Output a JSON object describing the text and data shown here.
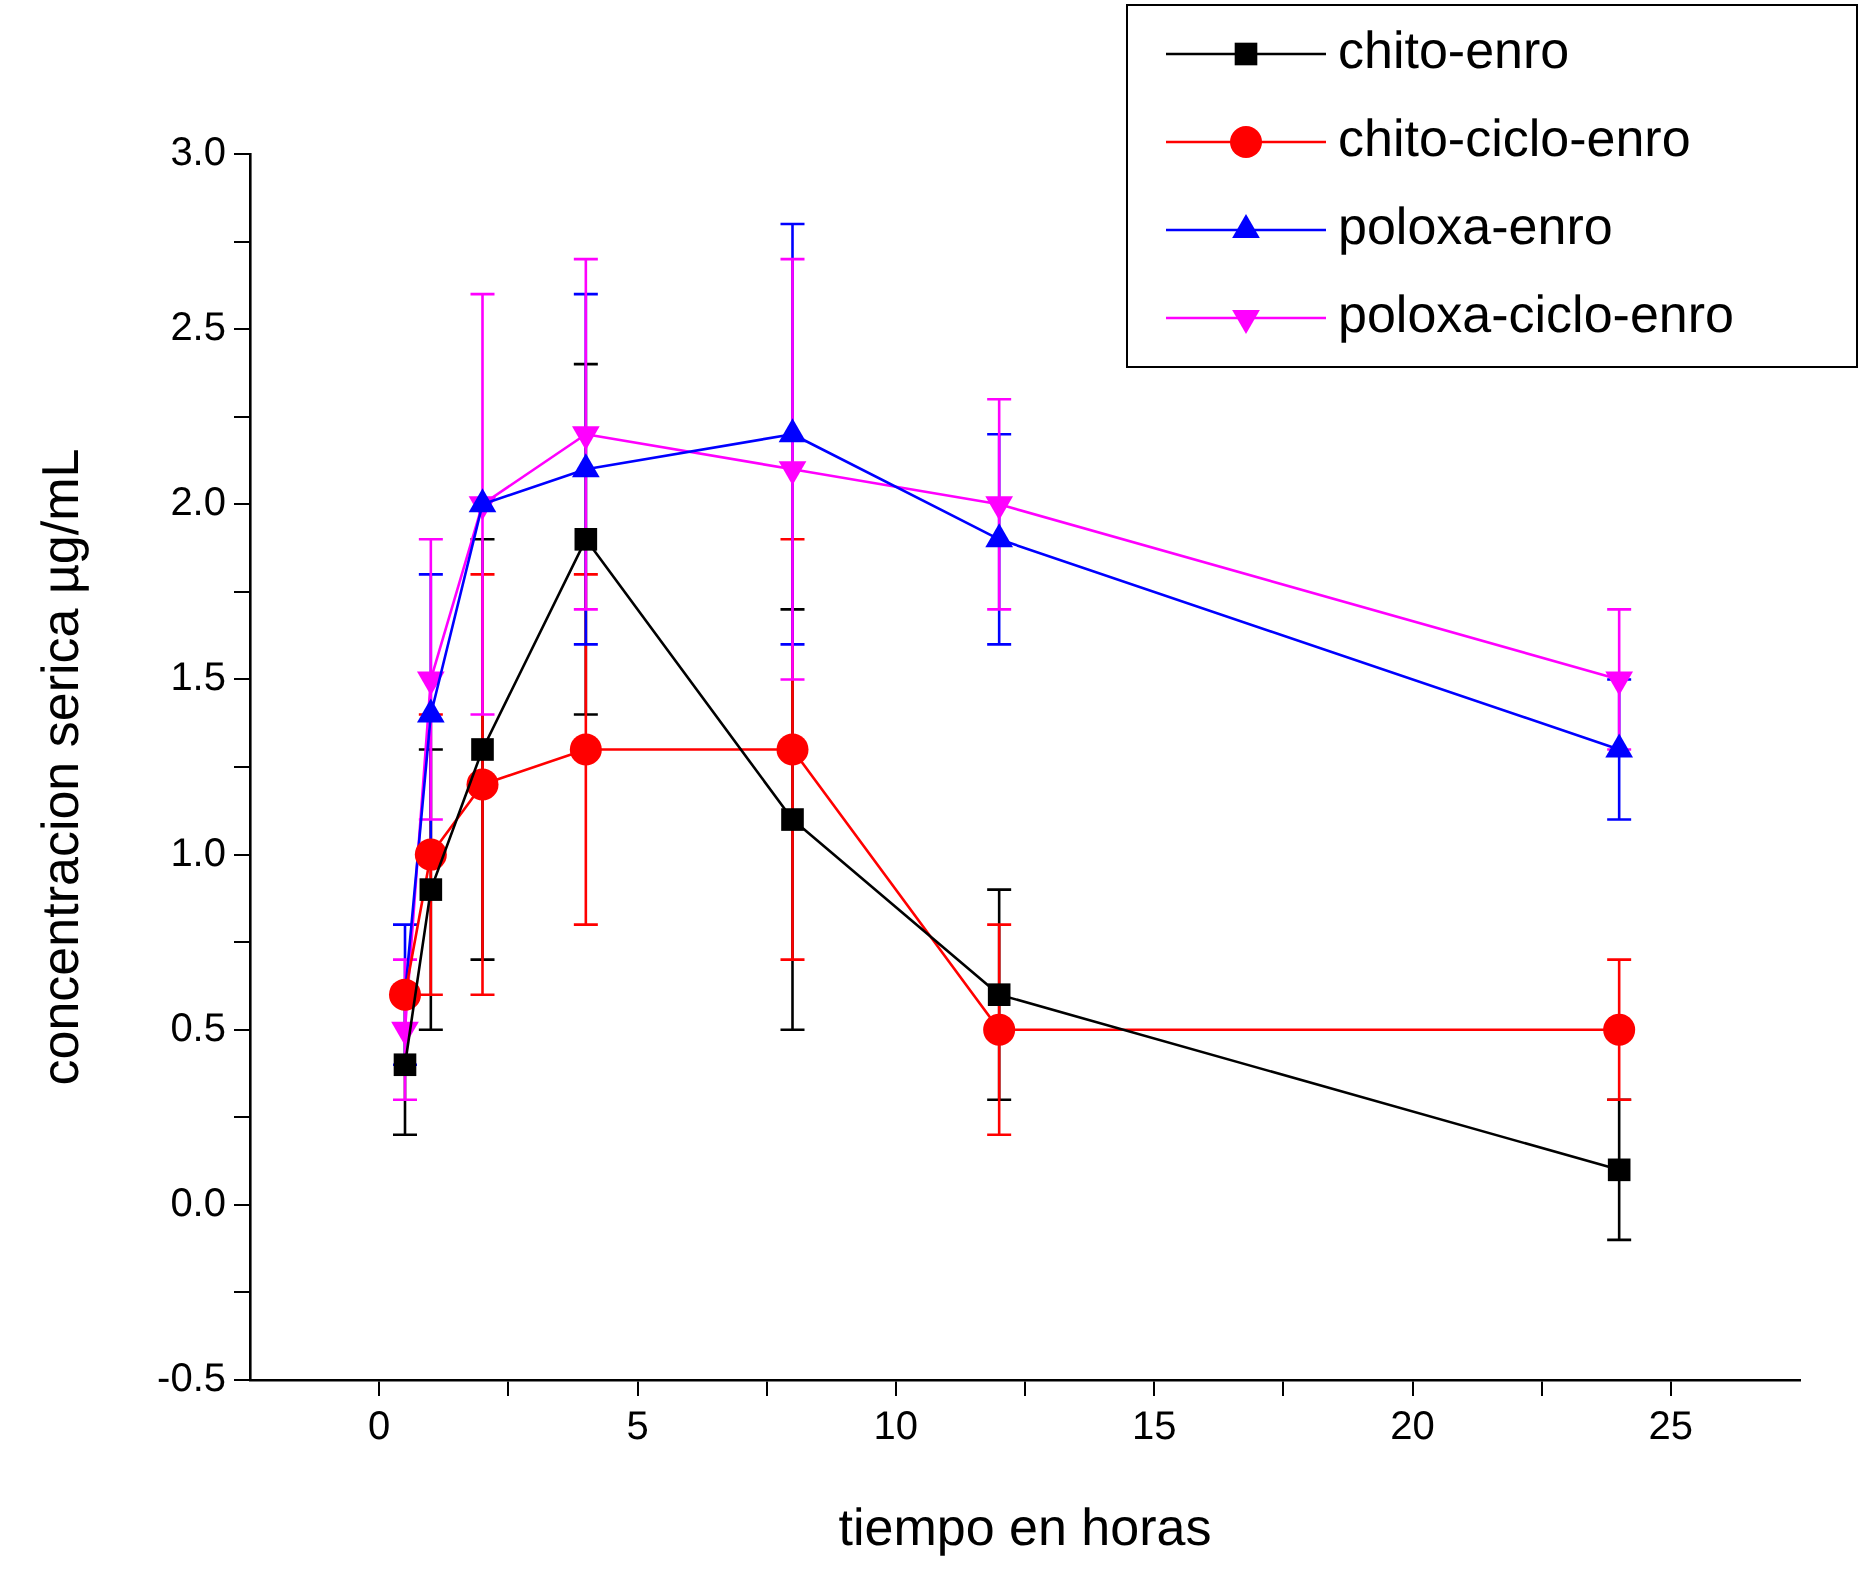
{
  "chart_data": {
    "type": "line",
    "xlabel": "tiempo en horas",
    "ylabel": "concentracion serica µg/mL",
    "x": [
      0.5,
      1,
      2,
      4,
      8,
      12,
      24
    ],
    "series": [
      {
        "name": "chito-enro",
        "color": "#000000",
        "marker": "square",
        "values": [
          0.4,
          0.9,
          1.3,
          1.9,
          1.1,
          0.6,
          0.1
        ],
        "errors": [
          0.2,
          0.4,
          0.6,
          0.5,
          0.6,
          0.3,
          0.2
        ]
      },
      {
        "name": "chito-ciclo-enro",
        "color": "#ff0000",
        "marker": "circle",
        "values": [
          0.6,
          1.0,
          1.2,
          1.3,
          1.3,
          0.5,
          0.5
        ],
        "errors": [
          null,
          0.4,
          0.6,
          0.5,
          0.6,
          0.3,
          0.2
        ]
      },
      {
        "name": "poloxa-enro",
        "color": "#0000ff",
        "marker": "triangle",
        "values": [
          0.6,
          1.4,
          2.0,
          2.1,
          2.2,
          1.9,
          1.3
        ],
        "errors": [
          0.2,
          0.4,
          null,
          0.5,
          0.6,
          0.3,
          0.2
        ]
      },
      {
        "name": "poloxa-ciclo-enro",
        "color": "#ff00ff",
        "marker": "triangle-down",
        "values": [
          0.5,
          1.5,
          2.0,
          2.2,
          2.1,
          2.0,
          1.5
        ],
        "errors": [
          0.2,
          0.4,
          0.6,
          0.5,
          0.6,
          0.3,
          0.2
        ]
      }
    ],
    "xlim": [
      -2.5,
      27.5
    ],
    "xticks": [
      0,
      {
        "value": 2.5,
        "label": null
      },
      5,
      {
        "value": 7.5,
        "label": null
      },
      10,
      {
        "value": 12.5,
        "label": null
      },
      15,
      {
        "value": 17.5,
        "label": null
      },
      20,
      {
        "value": 22.5,
        "label": null
      },
      25
    ],
    "ylim": [
      -0.5,
      3.0
    ],
    "yticks": [
      -0.5,
      {
        "value": -0.25,
        "label": null
      },
      {
        "value": 0,
        "label": "0.0"
      },
      {
        "value": 0.25,
        "label": null
      },
      0.5,
      {
        "value": 0.75,
        "label": null
      },
      {
        "value": 1,
        "label": "1.0"
      },
      {
        "value": 1.25,
        "label": null
      },
      1.5,
      {
        "value": 1.75,
        "label": null
      },
      {
        "value": 2,
        "label": "2.0"
      },
      {
        "value": 2.25,
        "label": null
      },
      2.5,
      {
        "value": 2.75,
        "label": null
      },
      {
        "value": 3,
        "label": "3.0"
      }
    ],
    "grid": false,
    "legend": "top right",
    "line_style": "solid"
  }
}
